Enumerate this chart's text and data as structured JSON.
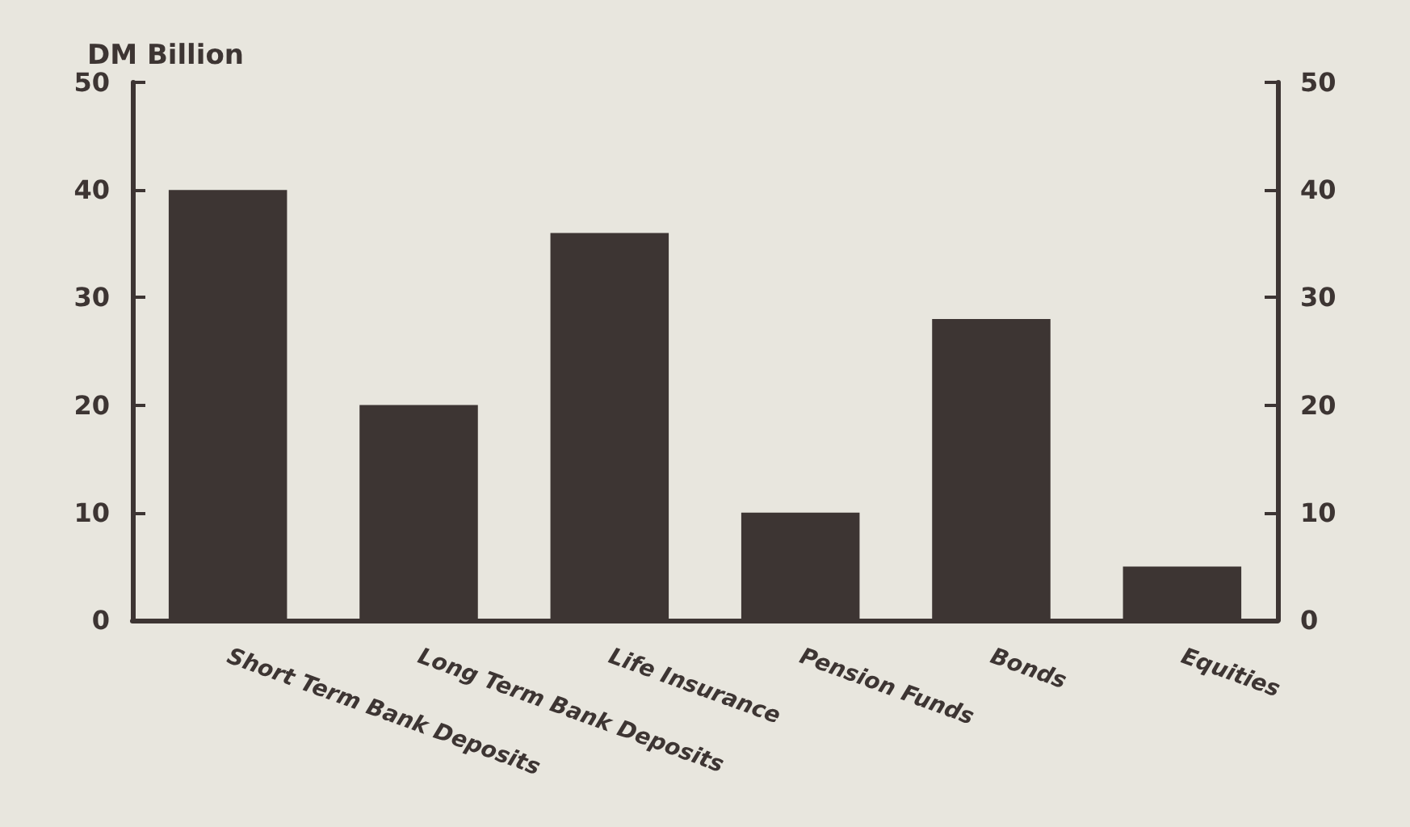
{
  "chart_data": {
    "type": "bar",
    "ylabel": "DM Billion",
    "categories": [
      "Short Term Bank Deposits",
      "Long Term Bank Deposits",
      "Life Insurance",
      "Pension Funds",
      "Bonds",
      "Equities"
    ],
    "values": [
      40,
      20,
      36,
      10,
      28,
      5
    ],
    "color": "#3d3533",
    "ylim": [
      0,
      50
    ],
    "yticks": [
      0,
      10,
      20,
      30,
      40,
      50
    ],
    "y2lim": [
      0,
      50
    ],
    "y2ticks": [
      0,
      10,
      20,
      30,
      40,
      50
    ]
  }
}
